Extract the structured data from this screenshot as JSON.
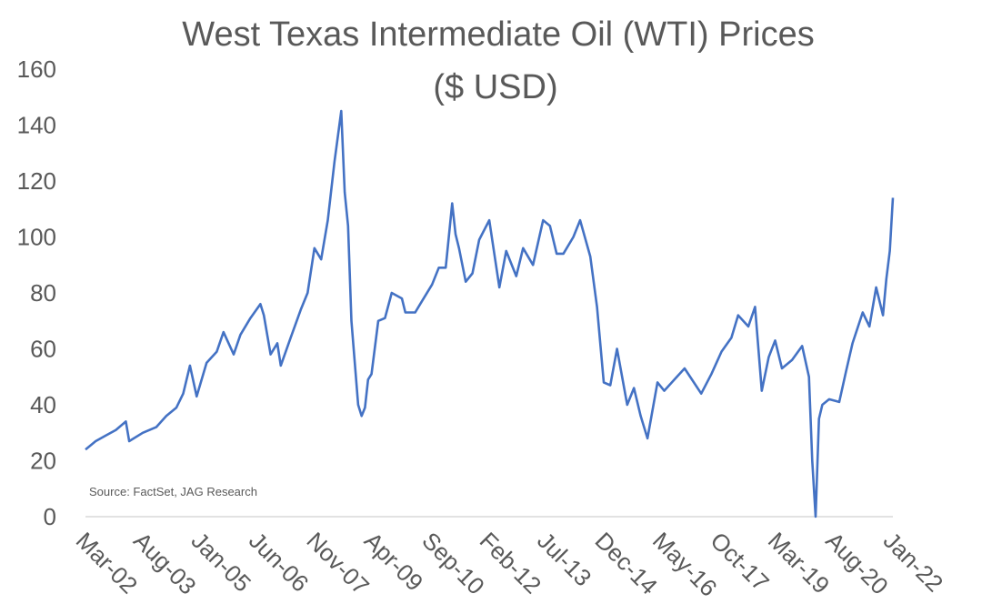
{
  "chart_data": {
    "type": "line",
    "title": "West Texas Intermediate Oil (WTI) Prices",
    "subtitle": "($ USD)",
    "xlabel": "",
    "ylabel": "",
    "ylim": [
      0,
      160
    ],
    "yticks": [
      "0",
      "20",
      "40",
      "60",
      "80",
      "100",
      "120",
      "140",
      "160"
    ],
    "x_tick_labels": [
      "Mar-02",
      "Aug-03",
      "Jan-05",
      "Jun-06",
      "Nov-07",
      "Apr-09",
      "Sep-10",
      "Feb-12",
      "Jul-13",
      "Dec-14",
      "May-16",
      "Oct-17",
      "Mar-19",
      "Aug-20",
      "Jan-22"
    ],
    "grid": false,
    "legend": "none",
    "line_color": "#4472C4",
    "annotation": "Source: FactSet, JAG Research",
    "series": [
      {
        "x": [
          "2002-03",
          "2002-06",
          "2002-09",
          "2002-12",
          "2003-03",
          "2003-04",
          "2003-08",
          "2003-12",
          "2004-03",
          "2004-06",
          "2004-08",
          "2004-10",
          "2004-12",
          "2005-03",
          "2005-06",
          "2005-08",
          "2005-11",
          "2006-01",
          "2006-04",
          "2006-07",
          "2006-08",
          "2006-10",
          "2006-12",
          "2007-01",
          "2007-04",
          "2007-07",
          "2007-09",
          "2007-11",
          "2008-01",
          "2008-03",
          "2008-05",
          "2008-07",
          "2008-08",
          "2008-09",
          "2008-10",
          "2008-11",
          "2008-12",
          "2009-01",
          "2009-02",
          "2009-03",
          "2009-04",
          "2009-06",
          "2009-08",
          "2009-10",
          "2010-01",
          "2010-02",
          "2010-05",
          "2010-07",
          "2010-10",
          "2010-12",
          "2011-02",
          "2011-04",
          "2011-05",
          "2011-06",
          "2011-08",
          "2011-10",
          "2011-12",
          "2012-03",
          "2012-06",
          "2012-08",
          "2012-11",
          "2013-01",
          "2013-04",
          "2013-07",
          "2013-09",
          "2013-11",
          "2014-01",
          "2014-04",
          "2014-06",
          "2014-09",
          "2014-11",
          "2015-01",
          "2015-03",
          "2015-05",
          "2015-08",
          "2015-10",
          "2015-12",
          "2016-02",
          "2016-05",
          "2016-07",
          "2016-10",
          "2017-01",
          "2017-06",
          "2017-09",
          "2017-12",
          "2018-03",
          "2018-05",
          "2018-08",
          "2018-10",
          "2018-12",
          "2019-02",
          "2019-04",
          "2019-06",
          "2019-09",
          "2019-12",
          "2020-02",
          "2020-03",
          "2020-04",
          "2020-05",
          "2020-06",
          "2020-08",
          "2020-11",
          "2021-01",
          "2021-03",
          "2021-06",
          "2021-08",
          "2021-10",
          "2021-12",
          "2022-01",
          "2022-02",
          "2022-03"
        ],
        "values": [
          24,
          27,
          29,
          31,
          34,
          27,
          30,
          32,
          36,
          39,
          44,
          54,
          43,
          55,
          59,
          66,
          58,
          65,
          71,
          76,
          72,
          58,
          62,
          54,
          64,
          74,
          80,
          96,
          92,
          106,
          127,
          145,
          116,
          104,
          70,
          55,
          40,
          36,
          39,
          49,
          51,
          70,
          71,
          80,
          78,
          73,
          73,
          77,
          83,
          89,
          89,
          112,
          101,
          96,
          84,
          87,
          99,
          106,
          82,
          95,
          86,
          96,
          90,
          106,
          104,
          94,
          94,
          100,
          106,
          93,
          75,
          48,
          47,
          60,
          40,
          46,
          36,
          28,
          48,
          45,
          49,
          53,
          44,
          51,
          59,
          64,
          72,
          68,
          75,
          45,
          57,
          63,
          53,
          56,
          61,
          50,
          20,
          0,
          35,
          40,
          42,
          41,
          52,
          62,
          73,
          68,
          82,
          72,
          85,
          95,
          114
        ]
      }
    ]
  }
}
